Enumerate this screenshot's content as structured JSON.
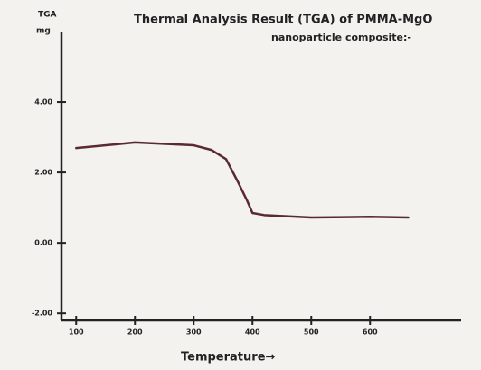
{
  "chart_data": {
    "type": "line",
    "title": "Thermal Analysis Result (TGA) of PMMA-MgO",
    "subtitle": "nanoparticle composite:-",
    "ylabel": "TGA",
    "yunit": "mg",
    "xlabel": "Temperature→",
    "x": [
      100,
      200,
      300,
      330,
      355,
      375,
      390,
      400,
      420,
      500,
      600,
      665
    ],
    "series": [
      {
        "name": "TGA",
        "color": "#5a2a30",
        "values": [
          2.69,
          2.85,
          2.77,
          2.64,
          2.38,
          1.74,
          1.23,
          0.85,
          0.79,
          0.72,
          0.74,
          0.72
        ]
      }
    ],
    "xlim": [
      75,
      755
    ],
    "ylim": [
      -2.2,
      6
    ],
    "xticks": [
      100,
      200,
      300,
      400,
      500,
      600
    ],
    "yticks": [
      {
        "value": 4,
        "label": "4.00"
      },
      {
        "value": 2,
        "label": "2.00"
      },
      {
        "value": 0,
        "label": "0.00"
      },
      {
        "value": -2,
        "label": "-2.00"
      }
    ],
    "grid": false
  }
}
